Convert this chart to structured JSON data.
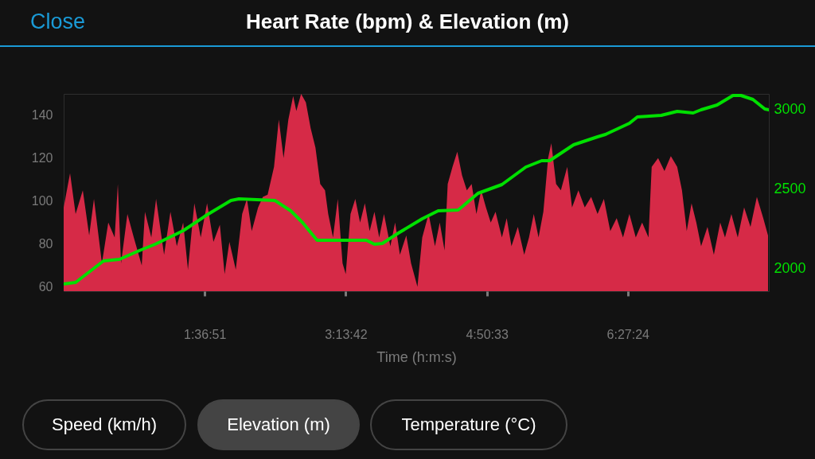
{
  "chart_data": {
    "type": "area",
    "title": "Heart Rate (bpm) & Elevation (m)",
    "xlabel": "Time (h:m:s)",
    "xlim": [
      0,
      29055
    ],
    "xticks": [
      {
        "value": 5811,
        "label": "1:36:51"
      },
      {
        "value": 11622,
        "label": "3:13:42"
      },
      {
        "value": 17433,
        "label": "4:50:33"
      },
      {
        "value": 23244,
        "label": "6:27:24"
      }
    ],
    "ylim": [
      58,
      150
    ],
    "yticks": [
      60,
      80,
      100,
      120,
      140
    ],
    "y2lim": [
      1855,
      3095
    ],
    "y2ticks": [
      2000,
      2500,
      3000
    ],
    "grid": false,
    "legend": false,
    "annotations": [
      "Close",
      "Speed (km/h)",
      "Elevation (m)",
      "Temperature (°C)"
    ],
    "series": [
      {
        "color": "#d62a47",
        "x": [
          0,
          263,
          492,
          788,
          1051,
          1248,
          1576,
          1838,
          2101,
          2232,
          2364,
          2626,
          2889,
          3217,
          3349,
          3611,
          3808,
          4137,
          4399,
          4662,
          4924,
          5121,
          5384,
          5647,
          5909,
          6172,
          6435,
          6632,
          6829,
          7091,
          7354,
          7551,
          7748,
          8011,
          8208,
          8404,
          8667,
          8864,
          9061,
          9258,
          9455,
          9586,
          9783,
          9980,
          10177,
          10374,
          10571,
          10768,
          10900,
          11097,
          11294,
          11491,
          11622,
          11819,
          12016,
          12213,
          12410,
          12607,
          12804,
          13001,
          13198,
          13460,
          13657,
          13854,
          14117,
          14314,
          14577,
          14774,
          15036,
          15299,
          15496,
          15693,
          15824,
          16021,
          16218,
          16415,
          16612,
          16809,
          17006,
          17203,
          17400,
          17597,
          17794,
          18057,
          18254,
          18450,
          18713,
          18976,
          19173,
          19370,
          19567,
          19764,
          19961,
          20092,
          20289,
          20486,
          20749,
          20946,
          21208,
          21471,
          21734,
          21997,
          22259,
          22522,
          22785,
          23047,
          23309,
          23572,
          23834,
          24097,
          24228,
          24492,
          24754,
          25017,
          25279,
          25476,
          25673,
          25870,
          26067,
          26264,
          26527,
          26790,
          27052,
          27249,
          27511,
          27774,
          28037,
          28299,
          28562,
          28825,
          29022
        ],
        "values": [
          97,
          113,
          94,
          105,
          84,
          101,
          71,
          90,
          83,
          108,
          71,
          94,
          83,
          70,
          95,
          83,
          101,
          75,
          95,
          79,
          90,
          68,
          99,
          83,
          99,
          81,
          89,
          66,
          81,
          68,
          94,
          101,
          86,
          97,
          102,
          103,
          116,
          138,
          120,
          138,
          149,
          142,
          150,
          146,
          134,
          125,
          108,
          105,
          94,
          83,
          101,
          71,
          66,
          94,
          101,
          90,
          99,
          86,
          95,
          83,
          94,
          79,
          90,
          75,
          84,
          71,
          60,
          83,
          94,
          79,
          90,
          77,
          108,
          116,
          123,
          112,
          105,
          108,
          94,
          105,
          97,
          90,
          95,
          83,
          92,
          79,
          88,
          75,
          83,
          94,
          83,
          95,
          120,
          127,
          108,
          105,
          116,
          97,
          105,
          97,
          102,
          94,
          101,
          86,
          92,
          83,
          94,
          83,
          90,
          83,
          116,
          120,
          114,
          121,
          116,
          105,
          86,
          99,
          90,
          79,
          88,
          75,
          90,
          83,
          94,
          83,
          97,
          88,
          102,
          92,
          84
        ]
      },
      {
        "type": "line",
        "axis": "y2",
        "color": "#00e000",
        "x": [
          0,
          492,
          1642,
          2298,
          3119,
          3775,
          4925,
          5909,
          6894,
          7223,
          8700,
          9357,
          9849,
          10440,
          12475,
          12804,
          13132,
          13789,
          14774,
          15430,
          16251,
          16415,
          17072,
          18057,
          19041,
          19698,
          20026,
          21011,
          21996,
          22324,
          23309,
          23638,
          24623,
          25279,
          25936,
          26264,
          26921,
          27578,
          27906,
          28398,
          28890,
          29055
        ],
        "values": [
          1900,
          1910,
          2045,
          2055,
          2110,
          2150,
          2235,
          2335,
          2425,
          2435,
          2425,
          2360,
          2285,
          2175,
          2175,
          2150,
          2155,
          2220,
          2310,
          2360,
          2365,
          2385,
          2470,
          2525,
          2635,
          2675,
          2675,
          2775,
          2825,
          2840,
          2910,
          2950,
          2960,
          2985,
          2975,
          2995,
          3025,
          3085,
          3085,
          3060,
          3000,
          2995
        ]
      }
    ]
  }
}
